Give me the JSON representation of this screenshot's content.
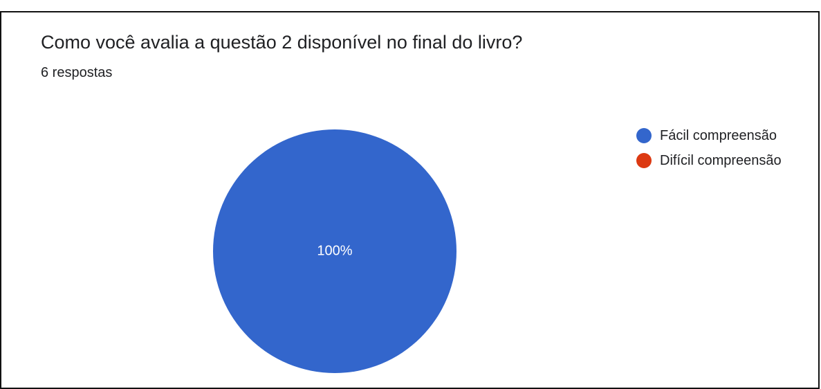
{
  "chart_data": {
    "type": "pie",
    "title": "Como você avalia a questão 2 disponível no final do livro?",
    "subtitle": "6 respostas",
    "categories": [
      "Fácil compreensão",
      "Difícil compreensão"
    ],
    "values": [
      100,
      0
    ],
    "data_labels": [
      "100%",
      ""
    ],
    "colors": [
      "#3366CC",
      "#DC3912"
    ],
    "legend_position": "right"
  }
}
